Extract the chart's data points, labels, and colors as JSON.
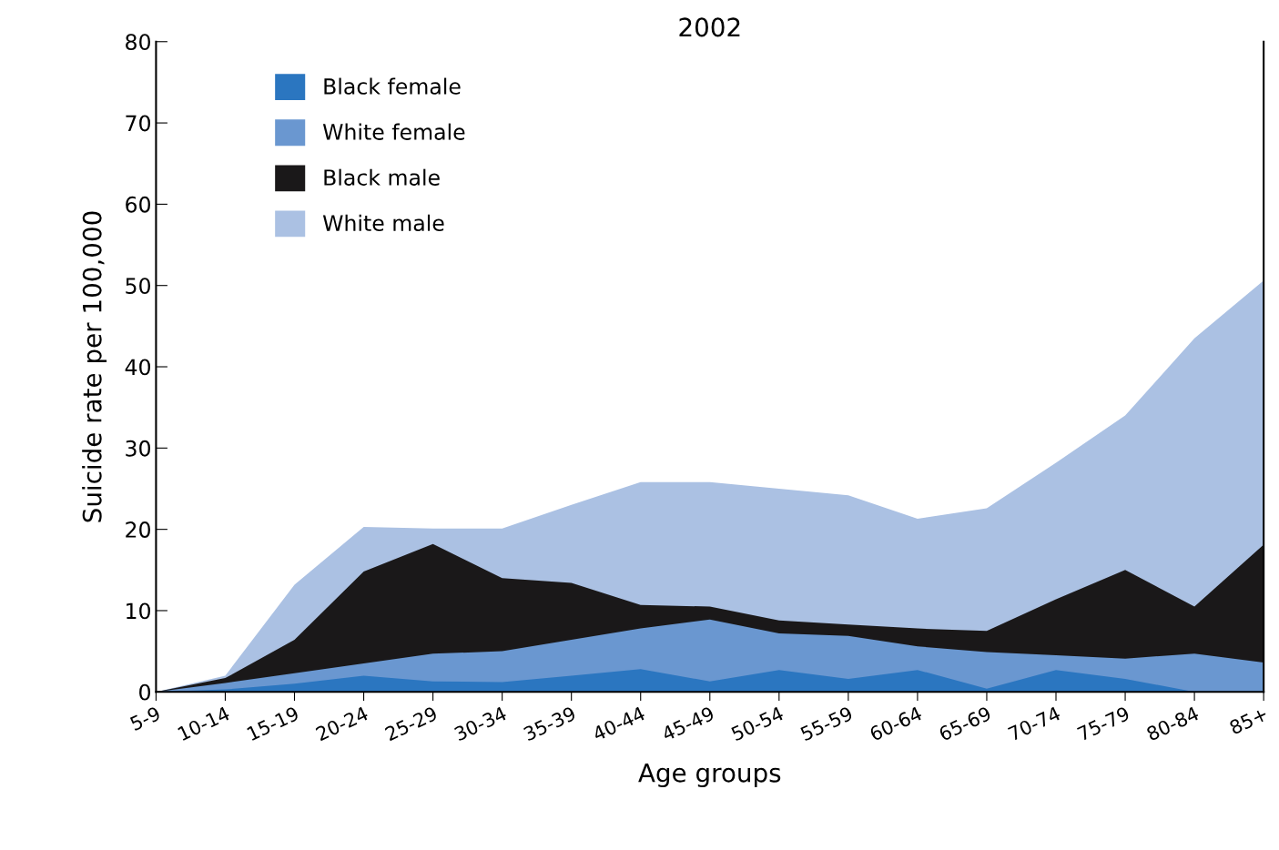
{
  "chart_data": {
    "type": "area",
    "title": "2002",
    "xlabel": "Age groups",
    "ylabel": "Suicide rate per 100,000",
    "categories": [
      "5-9",
      "10-14",
      "15-19",
      "20-24",
      "25-29",
      "30-34",
      "35-39",
      "40-44",
      "45-49",
      "50-54",
      "55-59",
      "60-64",
      "65-69",
      "70-74",
      "75-79",
      "80-84",
      "85+"
    ],
    "series": [
      {
        "name": "Black female",
        "color": "#2b76c0",
        "values": [
          0,
          0.3,
          1.0,
          2.0,
          1.3,
          1.2,
          2.0,
          2.8,
          1.3,
          2.7,
          1.6,
          2.7,
          0.4,
          2.7,
          1.6,
          0,
          0
        ]
      },
      {
        "name": "White female",
        "color": "#6a97d0",
        "values": [
          0,
          1.1,
          2.3,
          3.5,
          4.7,
          5.0,
          6.4,
          7.8,
          8.9,
          7.2,
          6.9,
          5.6,
          4.9,
          4.5,
          4.1,
          4.7,
          3.6
        ]
      },
      {
        "name": "Black male",
        "color": "#1a1819",
        "values": [
          0,
          1.7,
          6.4,
          14.8,
          18.2,
          14.0,
          13.4,
          10.7,
          10.5,
          8.8,
          8.3,
          7.8,
          7.5,
          11.4,
          15.0,
          10.5,
          18.1
        ]
      },
      {
        "name": "White male",
        "color": "#abc1e3",
        "values": [
          0,
          2.0,
          13.2,
          20.3,
          20.1,
          20.1,
          23.0,
          25.8,
          25.8,
          25.0,
          24.2,
          21.3,
          22.6,
          28.2,
          34.0,
          43.5,
          50.6
        ]
      }
    ],
    "ylim": [
      0,
      80
    ],
    "yticks": [
      0,
      10,
      20,
      30,
      40,
      50,
      60,
      70,
      80
    ],
    "grid": false,
    "legend": "top left"
  }
}
